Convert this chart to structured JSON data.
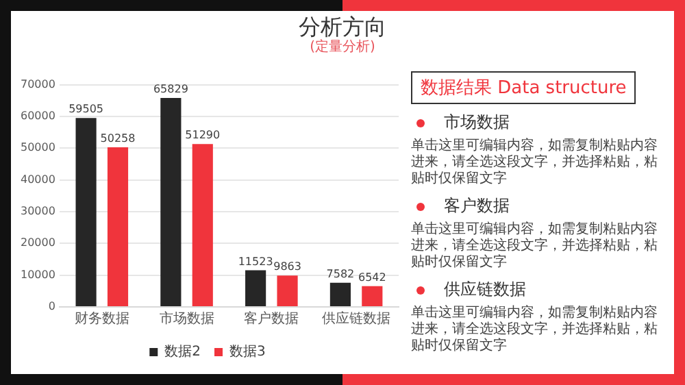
{
  "chart_data": [
    {
      "type": "bar",
      "title": "分析方向",
      "subtitle": "(定量分析)",
      "categories": [
        "财务数据",
        "市场数据",
        "客户数据",
        "供应链数据"
      ],
      "series": [
        {
          "name": "数据2",
          "color": "#262626",
          "values": [
            59505,
            65829,
            11523,
            7582
          ]
        },
        {
          "name": "数据3",
          "color": "#f0343c",
          "values": [
            50258,
            51290,
            9863,
            6542
          ]
        }
      ],
      "ylim": [
        0,
        70000
      ],
      "yticks": [
        0,
        10000,
        20000,
        30000,
        40000,
        50000,
        60000,
        70000
      ],
      "grid": "y",
      "legend": "bottom",
      "data_labels": true
    },
    {
      "type": "other",
      "title": "数据结果 Data structure",
      "annotations": [
        "市场数据",
        "单击这里可编辑内容，如需复制粘贴内容进来，请全选这段文字，并选择粘贴，粘贴时仅保留文字",
        "客户数据",
        "单击这里可编辑内容，如需复制粘贴内容进来，请全选这段文字，并选择粘贴，粘贴时仅保留文字",
        "供应链数据",
        "单击这里可编辑内容，如需复制粘贴内容进来，请全选这段文字，并选择粘贴，粘贴时仅保留文字"
      ]
    }
  ]
}
